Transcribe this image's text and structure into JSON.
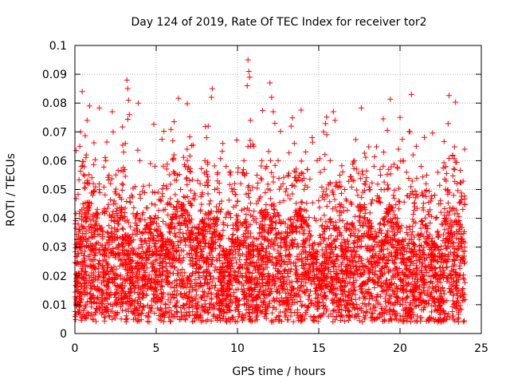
{
  "chart_data": {
    "type": "scatter",
    "title": "Day 124 of 2019, Rate Of TEC Index for receiver tor2",
    "xlabel": "GPS time / hours",
    "ylabel": "ROTI / TECUs",
    "xlim": [
      0,
      25
    ],
    "ylim": [
      0,
      0.1
    ],
    "xticks": [
      "0",
      "5",
      "10",
      "15",
      "20",
      "25"
    ],
    "yticks": [
      "0",
      "0.01",
      "0.02",
      "0.03",
      "0.04",
      "0.05",
      "0.06",
      "0.07",
      "0.08",
      "0.09",
      "0.1"
    ],
    "grid": true,
    "marker": "plus",
    "color": "#ff0000",
    "series": [
      {
        "points": [
          [
            0.1,
            0.012
          ],
          [
            0.2,
            0.038
          ],
          [
            0.3,
            0.065
          ],
          [
            0.35,
            0.07
          ],
          [
            0.4,
            0.058
          ],
          [
            0.45,
            0.084
          ],
          [
            0.5,
            0.045
          ],
          [
            0.6,
            0.03
          ],
          [
            0.7,
            0.062
          ],
          [
            0.75,
            0.074
          ],
          [
            0.8,
            0.052
          ],
          [
            0.9,
            0.079
          ],
          [
            1.0,
            0.035
          ],
          [
            1.1,
            0.048
          ],
          [
            1.3,
            0.028
          ],
          [
            1.5,
            0.05
          ],
          [
            1.7,
            0.042
          ],
          [
            1.9,
            0.06
          ],
          [
            2.1,
            0.055
          ],
          [
            2.3,
            0.077
          ],
          [
            2.35,
            0.07
          ],
          [
            2.5,
            0.045
          ],
          [
            2.7,
            0.038
          ],
          [
            2.9,
            0.052
          ],
          [
            3.0,
            0.063
          ],
          [
            3.1,
            0.066
          ],
          [
            3.2,
            0.088
          ],
          [
            3.25,
            0.085
          ],
          [
            3.3,
            0.081
          ],
          [
            3.35,
            0.076
          ],
          [
            3.5,
            0.048
          ],
          [
            3.7,
            0.051
          ],
          [
            3.9,
            0.08
          ],
          [
            4.0,
            0.06
          ],
          [
            4.2,
            0.042
          ],
          [
            4.5,
            0.035
          ],
          [
            4.7,
            0.04
          ],
          [
            5.0,
            0.02
          ],
          [
            5.3,
            0.046
          ],
          [
            5.6,
            0.038
          ],
          [
            5.9,
            0.028
          ],
          [
            6.1,
            0.062
          ],
          [
            6.3,
            0.055
          ],
          [
            6.5,
            0.05
          ],
          [
            6.8,
            0.058
          ],
          [
            6.9,
            0.064
          ],
          [
            7.1,
            0.045
          ],
          [
            7.4,
            0.048
          ],
          [
            7.7,
            0.052
          ],
          [
            8.0,
            0.06
          ],
          [
            8.1,
            0.068
          ],
          [
            8.2,
            0.072
          ],
          [
            8.4,
            0.082
          ],
          [
            8.45,
            0.085
          ],
          [
            8.6,
            0.05
          ],
          [
            8.9,
            0.045
          ],
          [
            9.1,
            0.066
          ],
          [
            9.3,
            0.058
          ],
          [
            9.5,
            0.056
          ],
          [
            9.8,
            0.05
          ],
          [
            10.0,
            0.046
          ],
          [
            10.2,
            0.052
          ],
          [
            10.4,
            0.06
          ],
          [
            10.6,
            0.086
          ],
          [
            10.65,
            0.095
          ],
          [
            10.7,
            0.091
          ],
          [
            10.75,
            0.089
          ],
          [
            10.8,
            0.074
          ],
          [
            11.0,
            0.065
          ],
          [
            11.2,
            0.055
          ],
          [
            11.5,
            0.06
          ],
          [
            11.8,
            0.058
          ],
          [
            12.0,
            0.087
          ],
          [
            12.1,
            0.082
          ],
          [
            12.2,
            0.077
          ],
          [
            12.3,
            0.073
          ],
          [
            12.5,
            0.06
          ],
          [
            12.8,
            0.052
          ],
          [
            13.1,
            0.048
          ],
          [
            13.3,
            0.072
          ],
          [
            13.5,
            0.066
          ],
          [
            13.8,
            0.055
          ],
          [
            14.1,
            0.05
          ],
          [
            14.3,
            0.057
          ],
          [
            14.6,
            0.068
          ],
          [
            14.9,
            0.06
          ],
          [
            15.1,
            0.056
          ],
          [
            15.3,
            0.07
          ],
          [
            15.5,
            0.069
          ],
          [
            15.7,
            0.06
          ],
          [
            15.9,
            0.077
          ],
          [
            16.0,
            0.074
          ],
          [
            16.3,
            0.055
          ],
          [
            16.6,
            0.05
          ],
          [
            17.0,
            0.045
          ],
          [
            17.4,
            0.048
          ],
          [
            17.8,
            0.052
          ],
          [
            18.1,
            0.05
          ],
          [
            18.4,
            0.058
          ],
          [
            18.8,
            0.055
          ],
          [
            19.0,
            0.063
          ],
          [
            19.3,
            0.057
          ],
          [
            19.6,
            0.048
          ],
          [
            19.9,
            0.064
          ],
          [
            20.0,
            0.075
          ],
          [
            20.2,
            0.06
          ],
          [
            20.4,
            0.056
          ],
          [
            20.6,
            0.07
          ],
          [
            20.7,
            0.083
          ],
          [
            20.8,
            0.062
          ],
          [
            21.0,
            0.065
          ],
          [
            21.3,
            0.058
          ],
          [
            21.6,
            0.052
          ],
          [
            21.9,
            0.046
          ],
          [
            22.2,
            0.04
          ],
          [
            22.5,
            0.045
          ],
          [
            22.8,
            0.058
          ],
          [
            23.1,
            0.035
          ],
          [
            23.3,
            0.048
          ],
          [
            23.5,
            0.052
          ],
          [
            23.7,
            0.038
          ],
          [
            23.9,
            0.032
          ]
        ]
      }
    ]
  }
}
